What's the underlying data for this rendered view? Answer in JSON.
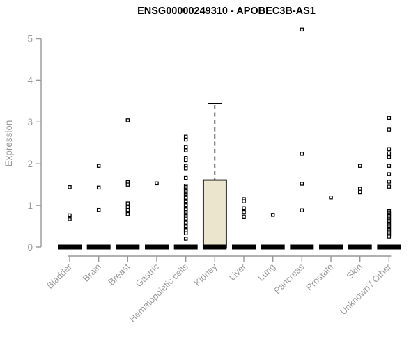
{
  "chart_data": {
    "type": "boxplot",
    "title": "ENSG00000249310 - APOBEC3B-AS1",
    "ylabel": "Expression",
    "xlabel": "",
    "ylim": [
      0,
      5
    ],
    "yticks": [
      0,
      1,
      2,
      3,
      4,
      5
    ],
    "grid": false,
    "legend": "none",
    "colors": {
      "box_fill": "#ece5cd",
      "box_stroke": "#000000",
      "median": "#000000",
      "point_stroke": "#000000",
      "point_fill": "#ffffff",
      "axis": "#979797",
      "tick_label": "#9a9a9a",
      "title": "#000000"
    },
    "categories": [
      {
        "label": "Bladder",
        "box": {
          "q1": 0,
          "median": 0,
          "q3": 0,
          "whisker_low": 0,
          "whisker_high": 0
        },
        "points": [
          1.44,
          0.76,
          0.67
        ]
      },
      {
        "label": "Brain",
        "box": {
          "q1": 0,
          "median": 0,
          "q3": 0,
          "whisker_low": 0,
          "whisker_high": 0
        },
        "points": [
          1.95,
          1.43,
          0.89
        ]
      },
      {
        "label": "Breast",
        "box": {
          "q1": 0,
          "median": 0,
          "q3": 0,
          "whisker_low": 0,
          "whisker_high": 0
        },
        "points": [
          3.04,
          1.56,
          1.5,
          1.05,
          0.96,
          0.89,
          0.79
        ]
      },
      {
        "label": "Gastric",
        "box": {
          "q1": 0,
          "median": 0,
          "q3": 0,
          "whisker_low": 0,
          "whisker_high": 0
        },
        "points": [
          1.53
        ]
      },
      {
        "label": "Hematopoietic cells",
        "box": {
          "q1": 0,
          "median": 0,
          "q3": 0,
          "whisker_low": 0,
          "whisker_high": 0
        },
        "points": [
          2.65,
          2.58,
          2.4,
          2.32,
          2.14,
          2.08,
          1.95,
          1.89,
          1.66,
          1.47,
          1.44,
          1.41,
          1.38,
          1.34,
          1.31,
          1.28,
          1.24,
          1.21,
          1.18,
          1.14,
          1.11,
          1.08,
          1.04,
          1.01,
          0.98,
          0.94,
          0.91,
          0.88,
          0.84,
          0.81,
          0.78,
          0.74,
          0.71,
          0.68,
          0.64,
          0.61,
          0.58,
          0.54,
          0.51,
          0.48,
          0.44,
          0.41,
          0.38,
          0.33,
          0.2
        ]
      },
      {
        "label": "Kidney",
        "box": {
          "q1": 0,
          "median": 0,
          "q3": 1.61,
          "whisker_low": 0,
          "whisker_high": 3.44
        },
        "points": []
      },
      {
        "label": "Liver",
        "box": {
          "q1": 0,
          "median": 0,
          "q3": 0,
          "whisker_low": 0,
          "whisker_high": 0
        },
        "points": [
          1.15,
          1.1,
          0.93,
          0.84,
          0.73
        ]
      },
      {
        "label": "Lung",
        "box": {
          "q1": 0,
          "median": 0,
          "q3": 0,
          "whisker_low": 0,
          "whisker_high": 0
        },
        "points": [
          0.77
        ]
      },
      {
        "label": "Pancreas",
        "box": {
          "q1": 0,
          "median": 0,
          "q3": 0,
          "whisker_low": 0,
          "whisker_high": 0
        },
        "points": [
          5.22,
          2.24,
          1.52,
          0.88
        ]
      },
      {
        "label": "Prostate",
        "box": {
          "q1": 0,
          "median": 0,
          "q3": 0,
          "whisker_low": 0,
          "whisker_high": 0
        },
        "points": [
          1.19
        ]
      },
      {
        "label": "Skin",
        "box": {
          "q1": 0,
          "median": 0,
          "q3": 0,
          "whisker_low": 0,
          "whisker_high": 0
        },
        "points": [
          1.95,
          1.4,
          1.31
        ]
      },
      {
        "label": "Unknown / Other",
        "box": {
          "q1": 0,
          "median": 0,
          "q3": 0,
          "whisker_low": 0,
          "whisker_high": 0
        },
        "points": [
          3.1,
          2.82,
          2.35,
          2.25,
          2.16,
          1.95,
          1.75,
          1.57,
          1.45,
          0.86,
          0.83,
          0.8,
          0.77,
          0.74,
          0.71,
          0.68,
          0.65,
          0.62,
          0.59,
          0.56,
          0.53,
          0.5,
          0.47,
          0.44,
          0.41,
          0.38,
          0.35,
          0.32,
          0.28,
          0.25
        ]
      }
    ]
  }
}
